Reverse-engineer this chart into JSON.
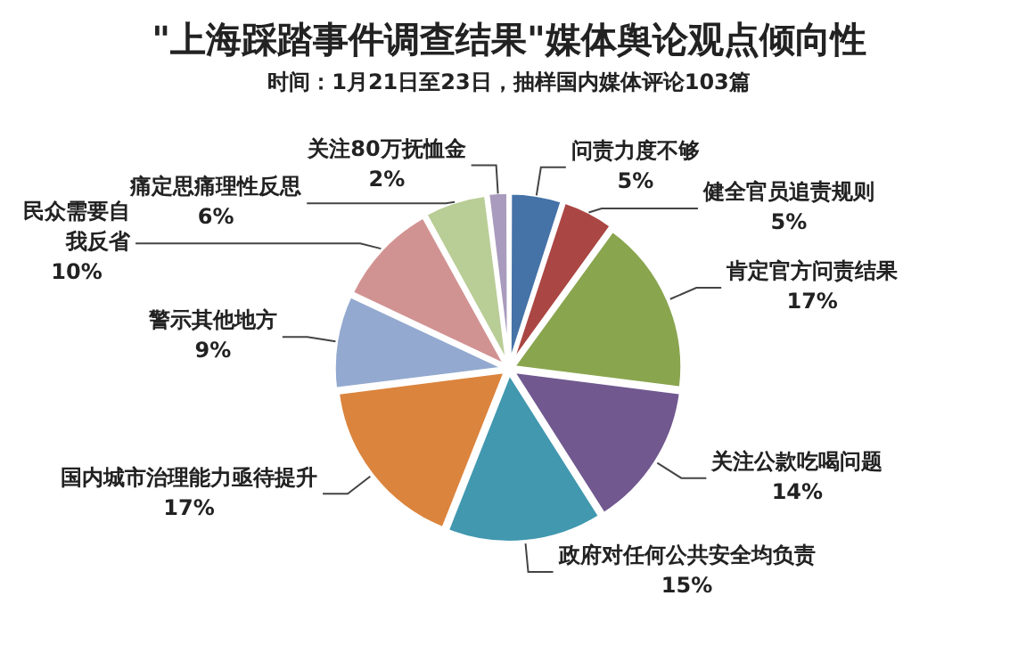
{
  "chart_data": {
    "type": "pie",
    "title": "\"上海踩踏事件调查结果\"媒体舆论观点倾向性",
    "subtitle": "时间：1月21日至23日，抽样国内媒体评论103篇",
    "categories": [
      "问责力度不够",
      "健全官员追责规则",
      "肯定官方问责结果",
      "关注公款吃喝问题",
      "政府对任何公共安全均负责",
      "国内城市治理能力亟待提升",
      "警示其他地方",
      "民众需要自我反省",
      "痛定思痛理性反思",
      "关注80万抚恤金"
    ],
    "values": [
      5,
      5,
      17,
      14,
      15,
      17,
      9,
      10,
      6,
      2
    ],
    "value_labels": [
      "5%",
      "5%",
      "17%",
      "14%",
      "15%",
      "17%",
      "9%",
      "10%",
      "6%",
      "2%"
    ],
    "colors": [
      "#4572a7",
      "#aa4643",
      "#89a54e",
      "#71588f",
      "#4198af",
      "#db843d",
      "#93a9cf",
      "#d19392",
      "#b9cd96",
      "#a99bbd"
    ],
    "legend": false
  }
}
